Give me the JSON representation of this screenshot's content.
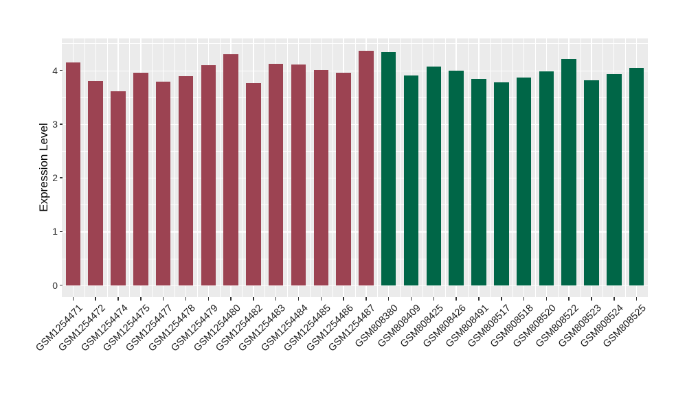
{
  "chart_data": {
    "type": "bar",
    "title": "",
    "xlabel": "",
    "ylabel": "Expression Level",
    "y_ticks": [
      0,
      1,
      2,
      3,
      4
    ],
    "y_minor_ticks": [
      0.5,
      1.5,
      2.5,
      3.5,
      4.5
    ],
    "ylim": [
      -0.22,
      4.59
    ],
    "grid": "on",
    "legend_position": "none",
    "group_colors": {
      "group1": "#9C4352",
      "group2": "#006647"
    },
    "bars": [
      {
        "label": "GSM1254471",
        "value": 4.15,
        "group": "group1"
      },
      {
        "label": "GSM1254472",
        "value": 3.8,
        "group": "group1"
      },
      {
        "label": "GSM1254474",
        "value": 3.61,
        "group": "group1"
      },
      {
        "label": "GSM1254475",
        "value": 3.95,
        "group": "group1"
      },
      {
        "label": "GSM1254477",
        "value": 3.79,
        "group": "group1"
      },
      {
        "label": "GSM1254478",
        "value": 3.89,
        "group": "group1"
      },
      {
        "label": "GSM1254479",
        "value": 4.1,
        "group": "group1"
      },
      {
        "label": "GSM1254480",
        "value": 4.3,
        "group": "group1"
      },
      {
        "label": "GSM1254482",
        "value": 3.76,
        "group": "group1"
      },
      {
        "label": "GSM1254483",
        "value": 4.12,
        "group": "group1"
      },
      {
        "label": "GSM1254484",
        "value": 4.11,
        "group": "group1"
      },
      {
        "label": "GSM1254485",
        "value": 4.01,
        "group": "group1"
      },
      {
        "label": "GSM1254486",
        "value": 3.95,
        "group": "group1"
      },
      {
        "label": "GSM1254487",
        "value": 4.36,
        "group": "group1"
      },
      {
        "label": "GSM808380",
        "value": 4.34,
        "group": "group2"
      },
      {
        "label": "GSM808409",
        "value": 3.91,
        "group": "group2"
      },
      {
        "label": "GSM808425",
        "value": 4.07,
        "group": "group2"
      },
      {
        "label": "GSM808426",
        "value": 4.0,
        "group": "group2"
      },
      {
        "label": "GSM808491",
        "value": 3.84,
        "group": "group2"
      },
      {
        "label": "GSM808517",
        "value": 3.78,
        "group": "group2"
      },
      {
        "label": "GSM808518",
        "value": 3.86,
        "group": "group2"
      },
      {
        "label": "GSM808520",
        "value": 3.98,
        "group": "group2"
      },
      {
        "label": "GSM808522",
        "value": 4.21,
        "group": "group2"
      },
      {
        "label": "GSM808523",
        "value": 3.82,
        "group": "group2"
      },
      {
        "label": "GSM808524",
        "value": 3.93,
        "group": "group2"
      },
      {
        "label": "GSM808525",
        "value": 4.04,
        "group": "group2"
      }
    ]
  },
  "style": {
    "panel_background": "#EBEBEB",
    "grid_color": "#FFFFFF",
    "axis_text_color": "#303030",
    "axis_title_color": "#000000",
    "tick_mark_color": "#333333",
    "figure_background": "#FFFFFF"
  }
}
